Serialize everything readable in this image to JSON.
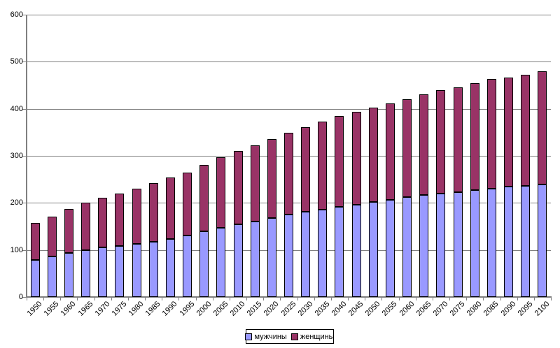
{
  "chart_data": {
    "type": "bar",
    "stacked": true,
    "title": "",
    "xlabel": "",
    "ylabel": "",
    "categories": [
      "1950",
      "1955",
      "1960",
      "1965",
      "1970",
      "1975",
      "1980",
      "1985",
      "1990",
      "1995",
      "2000",
      "2005",
      "2010",
      "2015",
      "2020",
      "2025",
      "2030",
      "2035",
      "2040",
      "2045",
      "2050",
      "2055",
      "2060",
      "2065",
      "2070",
      "2075",
      "2080",
      "2085",
      "2090",
      "2095",
      "2100"
    ],
    "series": [
      {
        "name": "мужчины",
        "color": "#9999FF",
        "values": [
          78,
          86,
          93,
          100,
          105,
          109,
          113,
          118,
          123,
          130,
          140,
          147,
          154,
          161,
          168,
          175,
          181,
          186,
          192,
          196,
          202,
          207,
          212,
          217,
          220,
          223,
          227,
          230,
          234,
          236,
          239
        ]
      },
      {
        "name": "женщины",
        "color": "#993366",
        "values": [
          80,
          85,
          94,
          100,
          106,
          111,
          117,
          124,
          131,
          135,
          141,
          150,
          157,
          162,
          168,
          174,
          180,
          187,
          192,
          197,
          201,
          205,
          209,
          213,
          219,
          223,
          227,
          233,
          233,
          236,
          240
        ]
      }
    ],
    "ylim": [
      0,
      600
    ],
    "yticks": [
      0,
      100,
      200,
      300,
      400,
      500,
      600
    ],
    "grid": true,
    "legend_position": "bottom-center"
  },
  "colors": {
    "men": "#9999FF",
    "women": "#993366",
    "gridline": "#808080",
    "axis": "#808080",
    "bar_border": "#000000",
    "text": "#000000",
    "background": "#FFFFFF",
    "legend_border": "#000000"
  }
}
